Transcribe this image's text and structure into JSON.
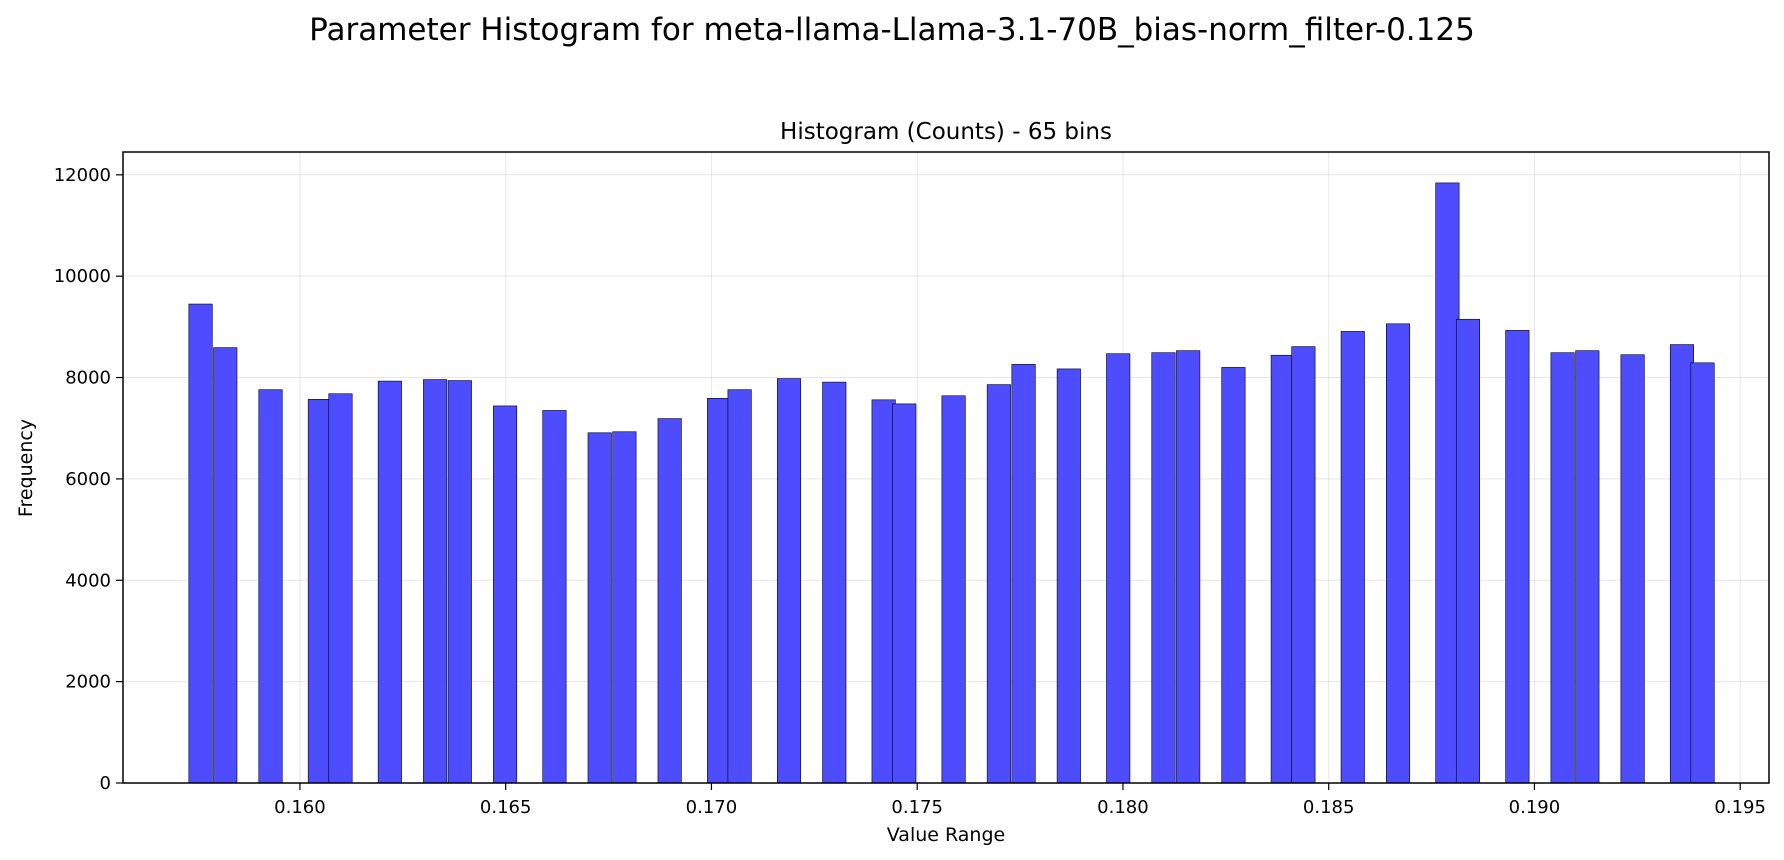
{
  "chart_data": {
    "type": "bar",
    "suptitle": "Parameter Histogram for meta-llama-Llama-3.1-70B_bias-norm_filter-0.125",
    "title": "Histogram (Counts) - 65 bins",
    "xlabel": "Value Range",
    "ylabel": "Frequency",
    "xlim": [
      0.1557,
      0.1957
    ],
    "ylim": [
      0,
      12450
    ],
    "bin_width": 0.00057,
    "xticks": [
      0.16,
      0.165,
      0.17,
      0.175,
      0.18,
      0.185,
      0.19,
      0.195
    ],
    "xtick_labels": [
      "0.160",
      "0.165",
      "0.170",
      "0.175",
      "0.180",
      "0.185",
      "0.190",
      "0.195"
    ],
    "yticks": [
      0,
      2000,
      4000,
      6000,
      8000,
      10000,
      12000
    ],
    "ytick_labels": [
      "0",
      "2000",
      "4000",
      "6000",
      "8000",
      "10000",
      "12000"
    ],
    "grid": true,
    "bar_color": "#4d4dff",
    "edge_color": "#000000",
    "bins": [
      {
        "x": 0.1573,
        "value": 9450
      },
      {
        "x": 0.1579,
        "value": 8590
      },
      {
        "x": 0.159,
        "value": 7760
      },
      {
        "x": 0.1602,
        "value": 7570
      },
      {
        "x": 0.1607,
        "value": 7680
      },
      {
        "x": 0.1619,
        "value": 7930
      },
      {
        "x": 0.163,
        "value": 7960
      },
      {
        "x": 0.1636,
        "value": 7940
      },
      {
        "x": 0.1647,
        "value": 7440
      },
      {
        "x": 0.1659,
        "value": 7350
      },
      {
        "x": 0.167,
        "value": 6910
      },
      {
        "x": 0.1676,
        "value": 6930
      },
      {
        "x": 0.1687,
        "value": 7190
      },
      {
        "x": 0.1699,
        "value": 7590
      },
      {
        "x": 0.1704,
        "value": 7760
      },
      {
        "x": 0.1716,
        "value": 7980
      },
      {
        "x": 0.1727,
        "value": 7910
      },
      {
        "x": 0.1739,
        "value": 7560
      },
      {
        "x": 0.1744,
        "value": 7480
      },
      {
        "x": 0.1756,
        "value": 7640
      },
      {
        "x": 0.1767,
        "value": 7860
      },
      {
        "x": 0.1773,
        "value": 8260
      },
      {
        "x": 0.1784,
        "value": 8170
      },
      {
        "x": 0.1796,
        "value": 8470
      },
      {
        "x": 0.1807,
        "value": 8490
      },
      {
        "x": 0.1813,
        "value": 8530
      },
      {
        "x": 0.1824,
        "value": 8200
      },
      {
        "x": 0.1836,
        "value": 8440
      },
      {
        "x": 0.1841,
        "value": 8610
      },
      {
        "x": 0.1853,
        "value": 8910
      },
      {
        "x": 0.1864,
        "value": 9060
      },
      {
        "x": 0.1876,
        "value": 11840
      },
      {
        "x": 0.1881,
        "value": 9150
      },
      {
        "x": 0.1893,
        "value": 8930
      },
      {
        "x": 0.1904,
        "value": 8490
      },
      {
        "x": 0.191,
        "value": 8530
      },
      {
        "x": 0.1921,
        "value": 8450
      },
      {
        "x": 0.1933,
        "value": 8650
      },
      {
        "x": 0.1938,
        "value": 8290
      }
    ]
  }
}
